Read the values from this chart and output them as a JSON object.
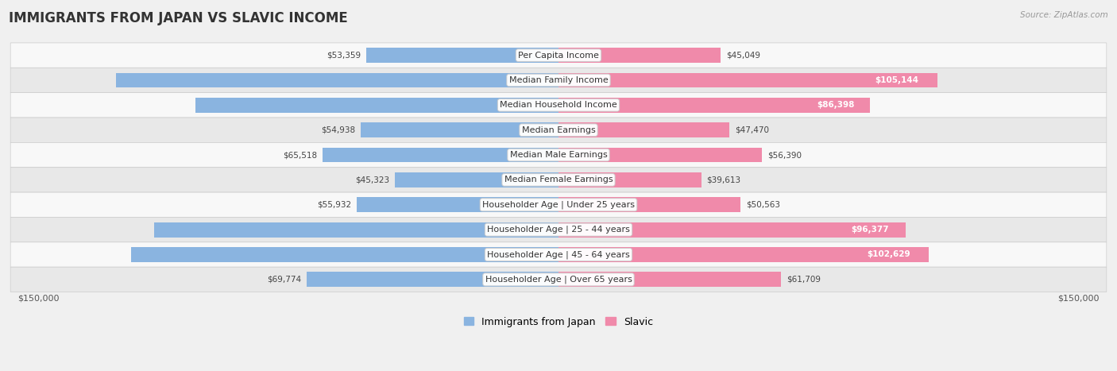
{
  "title": "IMMIGRANTS FROM JAPAN VS SLAVIC INCOME",
  "source": "Source: ZipAtlas.com",
  "categories": [
    "Per Capita Income",
    "Median Family Income",
    "Median Household Income",
    "Median Earnings",
    "Median Male Earnings",
    "Median Female Earnings",
    "Householder Age | Under 25 years",
    "Householder Age | 25 - 44 years",
    "Householder Age | 45 - 64 years",
    "Householder Age | Over 65 years"
  ],
  "japan_values": [
    53359,
    122764,
    100711,
    54938,
    65518,
    45323,
    55932,
    112228,
    118498,
    69774
  ],
  "slavic_values": [
    45049,
    105144,
    86398,
    47470,
    56390,
    39613,
    50563,
    96377,
    102629,
    61709
  ],
  "japan_color": "#8ab4e0",
  "slavic_color": "#f08aaa",
  "japan_dark_color": "#5a8fc0",
  "slavic_dark_color": "#e05880",
  "japan_label": "Immigrants from Japan",
  "slavic_label": "Slavic",
  "x_max": 150000,
  "x_label_left": "$150,000",
  "x_label_right": "$150,000",
  "bg_color": "#f0f0f0",
  "row_bg_even": "#f8f8f8",
  "row_bg_odd": "#e8e8e8",
  "bar_height": 0.6,
  "title_fontsize": 12,
  "label_fontsize": 8,
  "value_fontsize": 7.5,
  "legend_fontsize": 9,
  "inside_label_threshold": 75000
}
